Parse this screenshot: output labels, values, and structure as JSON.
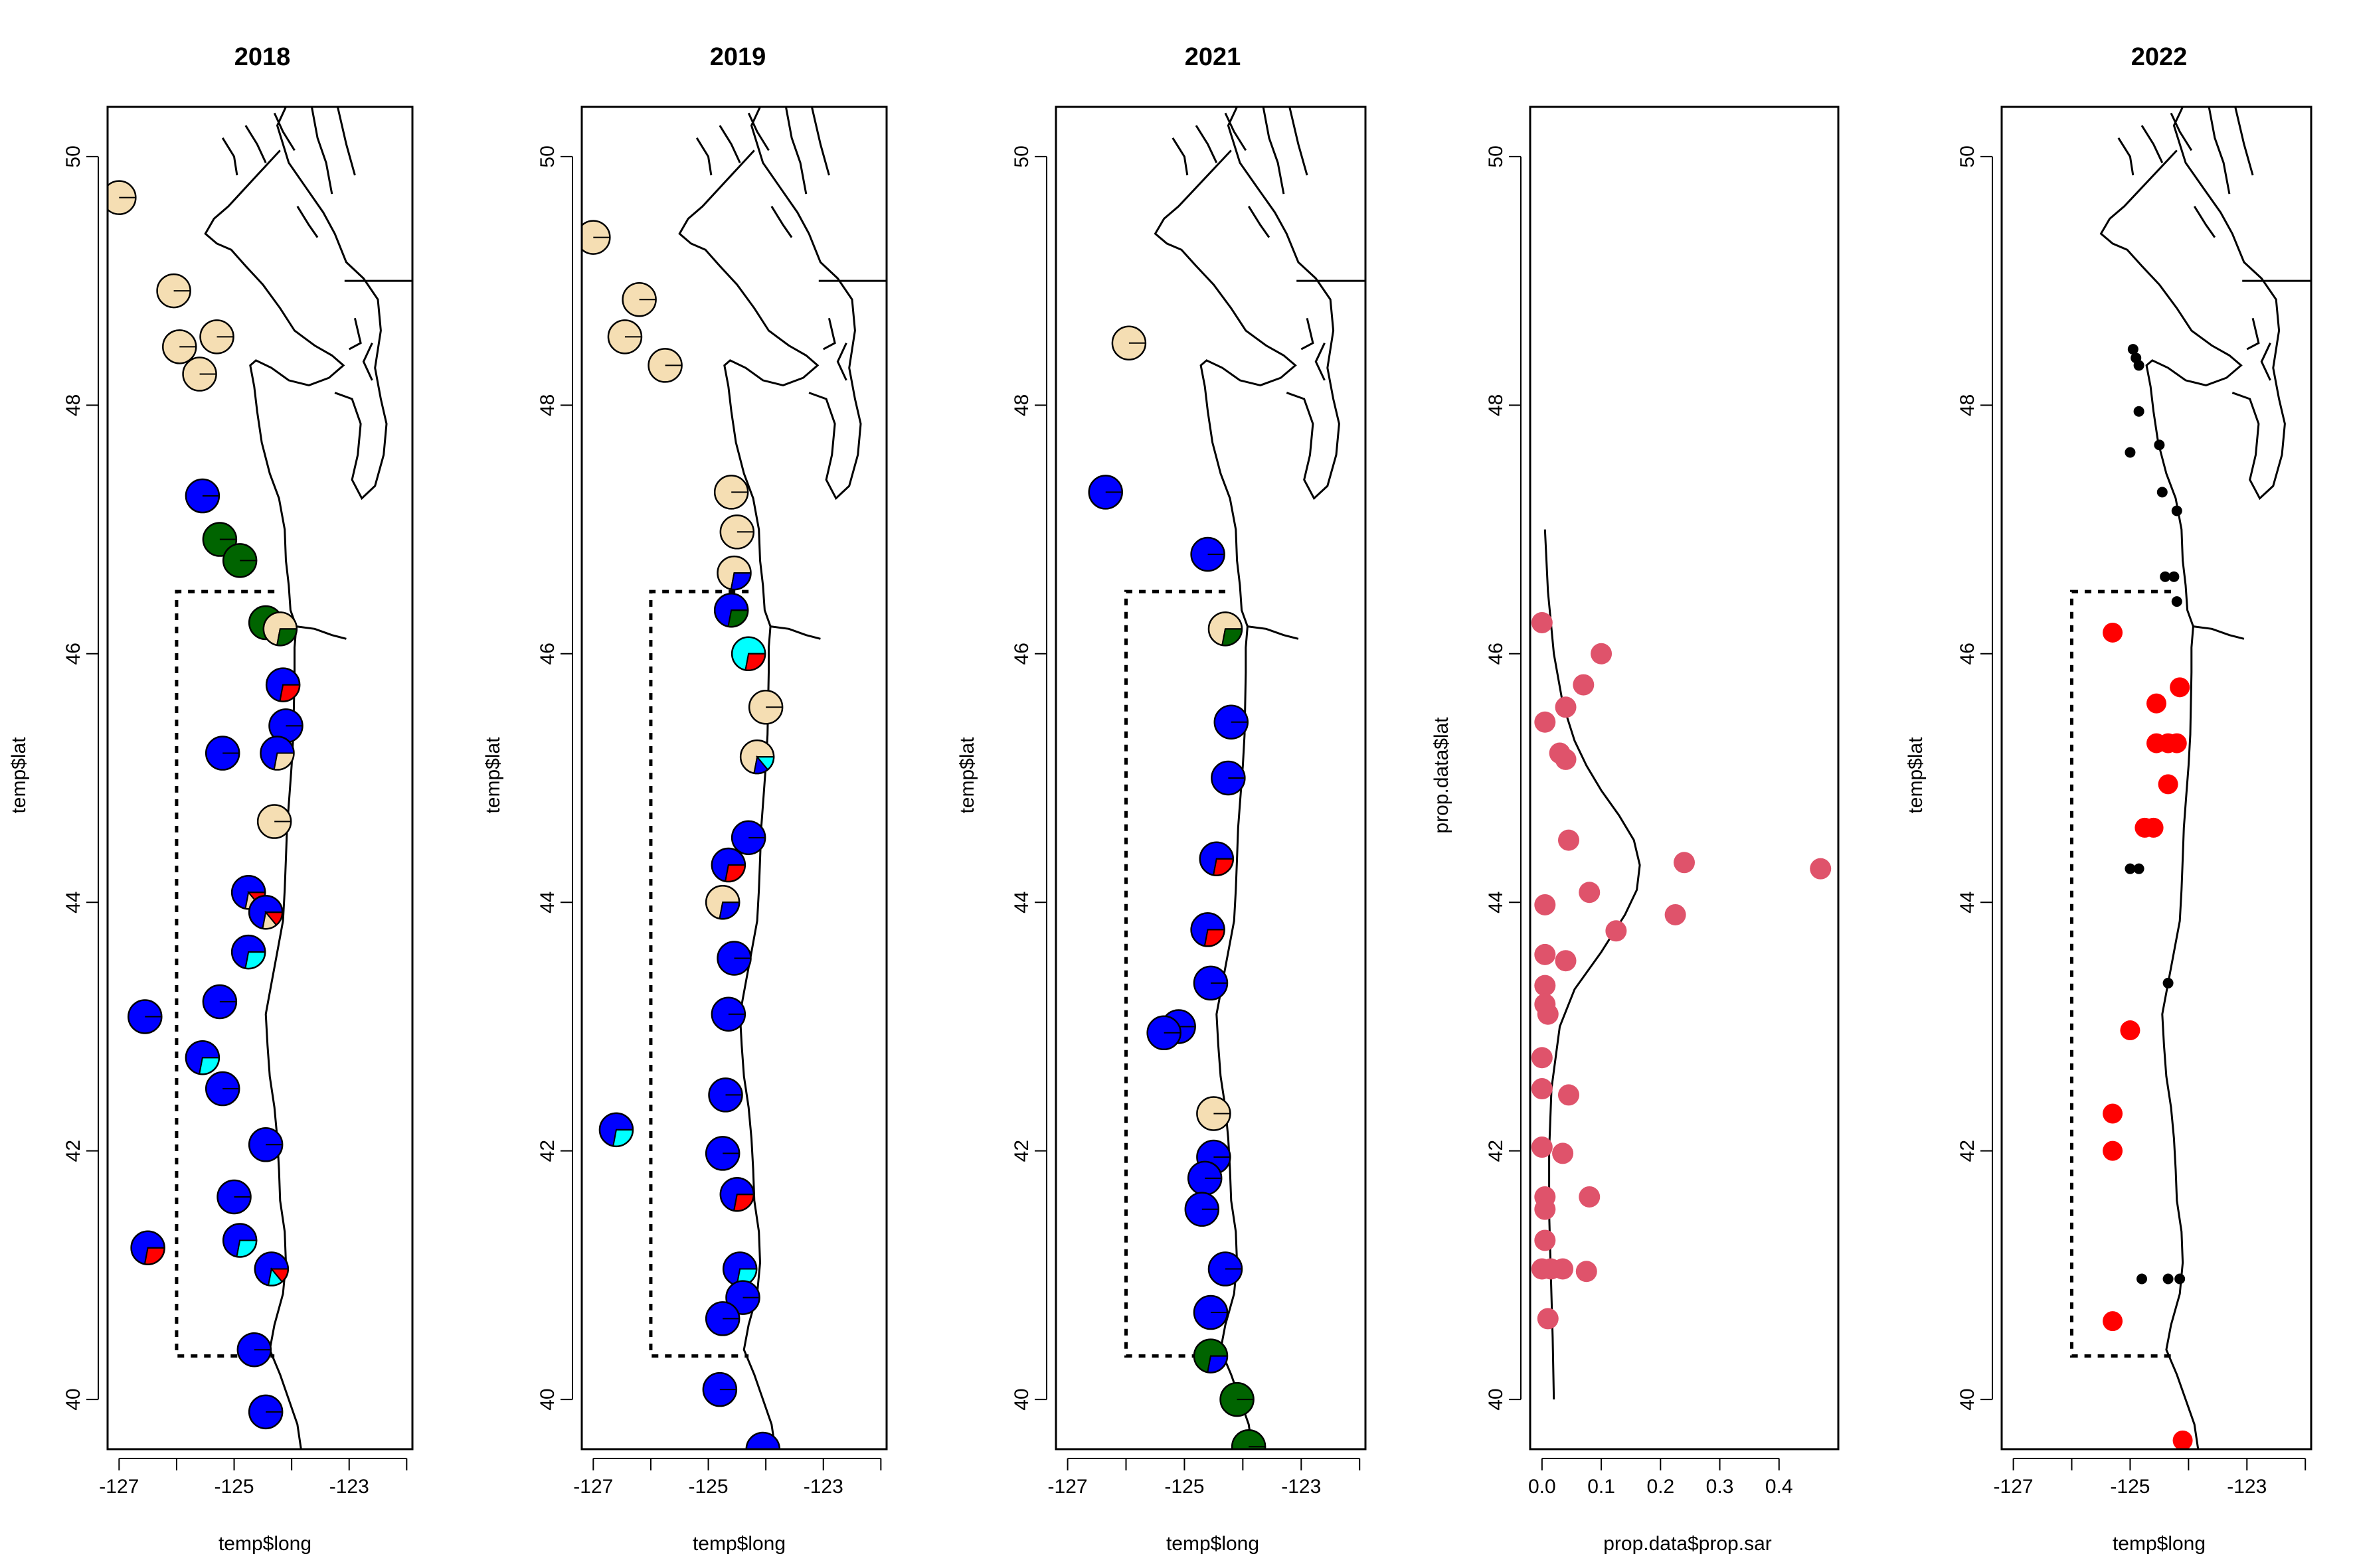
{
  "chart_data": [
    {
      "type": "map-pie",
      "title": "2018",
      "xlabel": "temp$long",
      "ylabel": "temp$lat",
      "xlim": [
        -127.2,
        -121.9
      ],
      "ylim": [
        39.6,
        50.4
      ],
      "xticks": [
        "-127",
        "-125",
        "-123"
      ],
      "yticks": [
        "40",
        "42",
        "44",
        "46",
        "48",
        "50"
      ],
      "box": {
        "lon": [
          -126.0,
          -124.3
        ],
        "lat": [
          40.35,
          46.5
        ]
      },
      "markers": [
        {
          "lon": -127.0,
          "lat": 49.67,
          "colors": [
            "tan"
          ]
        },
        {
          "lon": -126.05,
          "lat": 48.92,
          "colors": [
            "tan"
          ]
        },
        {
          "lon": -125.95,
          "lat": 48.47,
          "colors": [
            "tan"
          ]
        },
        {
          "lon": -125.6,
          "lat": 48.25,
          "colors": [
            "tan"
          ]
        },
        {
          "lon": -125.3,
          "lat": 48.55,
          "colors": [
            "tan"
          ]
        },
        {
          "lon": -125.55,
          "lat": 47.27,
          "colors": [
            "blue"
          ]
        },
        {
          "lon": -125.25,
          "lat": 46.92,
          "colors": [
            "green"
          ]
        },
        {
          "lon": -124.9,
          "lat": 46.75,
          "colors": [
            "green"
          ]
        },
        {
          "lon": -124.45,
          "lat": 46.25,
          "colors": [
            "green"
          ]
        },
        {
          "lon": -124.2,
          "lat": 46.2,
          "colors": [
            "tan",
            "green"
          ]
        },
        {
          "lon": -124.15,
          "lat": 45.75,
          "colors": [
            "blue",
            "red"
          ]
        },
        {
          "lon": -124.1,
          "lat": 45.42,
          "colors": [
            "blue"
          ]
        },
        {
          "lon": -125.2,
          "lat": 45.2,
          "colors": [
            "blue"
          ]
        },
        {
          "lon": -124.25,
          "lat": 45.2,
          "colors": [
            "blue",
            "tan"
          ]
        },
        {
          "lon": -124.3,
          "lat": 44.65,
          "colors": [
            "tan"
          ]
        },
        {
          "lon": -124.75,
          "lat": 44.08,
          "colors": [
            "blue",
            "tan",
            "red"
          ]
        },
        {
          "lon": -124.45,
          "lat": 43.92,
          "colors": [
            "blue",
            "tan",
            "red"
          ]
        },
        {
          "lon": -124.75,
          "lat": 43.6,
          "colors": [
            "blue",
            "cyan"
          ]
        },
        {
          "lon": -125.25,
          "lat": 43.2,
          "colors": [
            "blue"
          ]
        },
        {
          "lon": -126.55,
          "lat": 43.08,
          "colors": [
            "blue"
          ]
        },
        {
          "lon": -125.55,
          "lat": 42.75,
          "colors": [
            "blue",
            "cyan"
          ]
        },
        {
          "lon": -125.2,
          "lat": 42.5,
          "colors": [
            "blue"
          ]
        },
        {
          "lon": -124.45,
          "lat": 42.05,
          "colors": [
            "blue"
          ]
        },
        {
          "lon": -125.0,
          "lat": 41.63,
          "colors": [
            "blue"
          ]
        },
        {
          "lon": -124.9,
          "lat": 41.28,
          "colors": [
            "blue",
            "cyan"
          ]
        },
        {
          "lon": -126.5,
          "lat": 41.22,
          "colors": [
            "blue",
            "red"
          ]
        },
        {
          "lon": -124.35,
          "lat": 41.05,
          "colors": [
            "blue",
            "cyan",
            "red"
          ]
        },
        {
          "lon": -124.65,
          "lat": 40.4,
          "colors": [
            "blue"
          ]
        },
        {
          "lon": -124.45,
          "lat": 39.9,
          "colors": [
            "blue"
          ]
        }
      ]
    },
    {
      "type": "map-pie",
      "title": "2019",
      "xlabel": "temp$long",
      "ylabel": "temp$lat",
      "xlim": [
        -127.2,
        -121.9
      ],
      "ylim": [
        39.6,
        50.4
      ],
      "xticks": [
        "-127",
        "-125",
        "-123"
      ],
      "yticks": [
        "40",
        "42",
        "44",
        "46",
        "48",
        "50"
      ],
      "box": {
        "lon": [
          -126.0,
          -124.3
        ],
        "lat": [
          40.35,
          46.5
        ]
      },
      "markers": [
        {
          "lon": -127.0,
          "lat": 49.35,
          "colors": [
            "tan"
          ]
        },
        {
          "lon": -126.2,
          "lat": 48.85,
          "colors": [
            "tan"
          ]
        },
        {
          "lon": -126.45,
          "lat": 48.55,
          "colors": [
            "tan"
          ]
        },
        {
          "lon": -125.75,
          "lat": 48.32,
          "colors": [
            "tan"
          ]
        },
        {
          "lon": -124.6,
          "lat": 47.3,
          "colors": [
            "tan"
          ]
        },
        {
          "lon": -124.5,
          "lat": 46.98,
          "colors": [
            "tan"
          ]
        },
        {
          "lon": -124.55,
          "lat": 46.65,
          "colors": [
            "tan",
            "blue"
          ]
        },
        {
          "lon": -124.6,
          "lat": 46.35,
          "colors": [
            "blue",
            "green"
          ]
        },
        {
          "lon": -124.3,
          "lat": 46.0,
          "colors": [
            "cyan",
            "red"
          ]
        },
        {
          "lon": -124.0,
          "lat": 45.57,
          "colors": [
            "tan"
          ]
        },
        {
          "lon": -124.15,
          "lat": 45.17,
          "colors": [
            "tan",
            "blue",
            "cyan"
          ]
        },
        {
          "lon": -124.3,
          "lat": 44.52,
          "colors": [
            "blue"
          ]
        },
        {
          "lon": -124.65,
          "lat": 44.3,
          "colors": [
            "blue",
            "red"
          ]
        },
        {
          "lon": -124.75,
          "lat": 44.0,
          "colors": [
            "tan",
            "blue"
          ]
        },
        {
          "lon": -124.55,
          "lat": 43.55,
          "colors": [
            "blue"
          ]
        },
        {
          "lon": -124.65,
          "lat": 43.1,
          "colors": [
            "blue"
          ]
        },
        {
          "lon": -124.7,
          "lat": 42.45,
          "colors": [
            "blue"
          ]
        },
        {
          "lon": -126.6,
          "lat": 42.17,
          "colors": [
            "blue",
            "cyan"
          ]
        },
        {
          "lon": -124.75,
          "lat": 41.98,
          "colors": [
            "blue"
          ]
        },
        {
          "lon": -124.5,
          "lat": 41.65,
          "colors": [
            "blue",
            "red"
          ]
        },
        {
          "lon": -124.45,
          "lat": 41.05,
          "colors": [
            "blue",
            "cyan"
          ]
        },
        {
          "lon": -124.4,
          "lat": 40.82,
          "colors": [
            "blue"
          ]
        },
        {
          "lon": -124.75,
          "lat": 40.65,
          "colors": [
            "blue"
          ]
        },
        {
          "lon": -124.8,
          "lat": 40.08,
          "colors": [
            "blue"
          ]
        },
        {
          "lon": -124.05,
          "lat": 39.6,
          "colors": [
            "blue"
          ]
        }
      ]
    },
    {
      "type": "map-pie",
      "title": "2021",
      "xlabel": "temp$long",
      "ylabel": "temp$lat",
      "xlim": [
        -127.2,
        -121.9
      ],
      "ylim": [
        39.6,
        50.4
      ],
      "xticks": [
        "-127",
        "-125",
        "-123"
      ],
      "yticks": [
        "40",
        "42",
        "44",
        "46",
        "48",
        "50"
      ],
      "box": {
        "lon": [
          -126.0,
          -124.3
        ],
        "lat": [
          40.35,
          46.5
        ]
      },
      "markers": [
        {
          "lon": -125.95,
          "lat": 48.5,
          "colors": [
            "tan"
          ]
        },
        {
          "lon": -126.35,
          "lat": 47.3,
          "colors": [
            "blue"
          ]
        },
        {
          "lon": -124.6,
          "lat": 46.8,
          "colors": [
            "blue"
          ]
        },
        {
          "lon": -124.3,
          "lat": 46.2,
          "colors": [
            "tan",
            "green"
          ]
        },
        {
          "lon": -124.2,
          "lat": 45.45,
          "colors": [
            "blue"
          ]
        },
        {
          "lon": -124.25,
          "lat": 45.0,
          "colors": [
            "blue"
          ]
        },
        {
          "lon": -124.45,
          "lat": 44.35,
          "colors": [
            "blue",
            "red"
          ]
        },
        {
          "lon": -124.6,
          "lat": 43.78,
          "colors": [
            "blue",
            "red"
          ]
        },
        {
          "lon": -124.55,
          "lat": 43.35,
          "colors": [
            "blue"
          ]
        },
        {
          "lon": -125.1,
          "lat": 43.0,
          "colors": [
            "blue"
          ]
        },
        {
          "lon": -125.35,
          "lat": 42.95,
          "colors": [
            "blue"
          ]
        },
        {
          "lon": -124.5,
          "lat": 42.3,
          "colors": [
            "tan"
          ]
        },
        {
          "lon": -124.5,
          "lat": 41.95,
          "colors": [
            "blue"
          ]
        },
        {
          "lon": -124.65,
          "lat": 41.78,
          "colors": [
            "blue"
          ]
        },
        {
          "lon": -124.7,
          "lat": 41.53,
          "colors": [
            "blue"
          ]
        },
        {
          "lon": -124.3,
          "lat": 41.05,
          "colors": [
            "blue"
          ]
        },
        {
          "lon": -124.55,
          "lat": 40.7,
          "colors": [
            "blue"
          ]
        },
        {
          "lon": -124.55,
          "lat": 40.35,
          "colors": [
            "green",
            "blue"
          ]
        },
        {
          "lon": -124.1,
          "lat": 40.0,
          "colors": [
            "green"
          ]
        },
        {
          "lon": -123.9,
          "lat": 39.62,
          "colors": [
            "green"
          ]
        }
      ]
    },
    {
      "type": "scatter",
      "title": "",
      "xlabel": "prop.data$prop.sar",
      "ylabel": "prop.data$lat",
      "xlim": [
        -0.02,
        0.5
      ],
      "ylim": [
        39.6,
        50.4
      ],
      "xticks": [
        0.0,
        0.1,
        0.2,
        0.3,
        0.4
      ],
      "yticks": [
        40,
        42,
        44,
        46,
        48,
        50
      ],
      "points": [
        [
          0.0,
          46.25
        ],
        [
          0.1,
          46.0
        ],
        [
          0.07,
          45.75
        ],
        [
          0.04,
          45.57
        ],
        [
          0.005,
          45.45
        ],
        [
          0.03,
          45.2
        ],
        [
          0.04,
          45.15
        ],
        [
          0.045,
          44.5
        ],
        [
          0.24,
          44.32
        ],
        [
          0.47,
          44.27
        ],
        [
          0.08,
          44.08
        ],
        [
          0.005,
          43.98
        ],
        [
          0.225,
          43.9
        ],
        [
          0.125,
          43.77
        ],
        [
          0.005,
          43.58
        ],
        [
          0.04,
          43.53
        ],
        [
          0.005,
          43.33
        ],
        [
          0.005,
          43.18
        ],
        [
          0.01,
          43.1
        ],
        [
          0.0,
          42.75
        ],
        [
          0.0,
          42.5
        ],
        [
          0.045,
          42.45
        ],
        [
          0.0,
          42.03
        ],
        [
          0.035,
          41.98
        ],
        [
          0.005,
          41.63
        ],
        [
          0.08,
          41.63
        ],
        [
          0.005,
          41.53
        ],
        [
          0.005,
          41.28
        ],
        [
          0.0,
          41.05
        ],
        [
          0.035,
          41.05
        ],
        [
          0.015,
          41.05
        ],
        [
          0.075,
          41.03
        ],
        [
          0.01,
          40.65
        ]
      ],
      "curve_y": [
        40.0,
        40.5,
        41.0,
        41.5,
        42.0,
        42.5,
        43.0,
        43.3,
        43.6,
        43.9,
        44.1,
        44.3,
        44.5,
        44.7,
        44.9,
        45.1,
        45.3,
        45.6,
        46.0,
        46.5,
        47.0
      ],
      "curve_x": [
        0.02,
        0.018,
        0.015,
        0.012,
        0.012,
        0.016,
        0.03,
        0.055,
        0.1,
        0.14,
        0.16,
        0.165,
        0.155,
        0.13,
        0.1,
        0.075,
        0.055,
        0.035,
        0.02,
        0.01,
        0.005
      ]
    },
    {
      "type": "map-scatter",
      "title": "2022",
      "xlabel": "temp$long",
      "ylabel": "temp$lat",
      "xlim": [
        -127.2,
        -121.9
      ],
      "ylim": [
        39.6,
        50.4
      ],
      "xticks": [
        "-127",
        "-125",
        "-123"
      ],
      "yticks": [
        "40",
        "42",
        "44",
        "46",
        "48",
        "50"
      ],
      "box": {
        "lon": [
          -126.0,
          -124.3
        ],
        "lat": [
          40.35,
          46.5
        ]
      },
      "black_points": [
        [
          -124.95,
          48.45
        ],
        [
          -124.9,
          48.38
        ],
        [
          -124.85,
          48.32
        ],
        [
          -124.85,
          47.95
        ],
        [
          -124.5,
          47.68
        ],
        [
          -125.0,
          47.62
        ],
        [
          -124.45,
          47.3
        ],
        [
          -124.2,
          47.15
        ],
        [
          -124.4,
          46.62
        ],
        [
          -124.25,
          46.62
        ],
        [
          -124.2,
          46.42
        ],
        [
          -125.0,
          44.27
        ],
        [
          -124.85,
          44.27
        ],
        [
          -124.35,
          43.35
        ],
        [
          -124.8,
          40.97
        ],
        [
          -124.35,
          40.97
        ],
        [
          -124.15,
          40.97
        ]
      ],
      "red_points": [
        [
          -125.3,
          46.17
        ],
        [
          -124.15,
          45.73
        ],
        [
          -124.55,
          45.6
        ],
        [
          -124.55,
          45.28
        ],
        [
          -124.35,
          45.28
        ],
        [
          -124.2,
          45.28
        ],
        [
          -124.35,
          44.95
        ],
        [
          -124.75,
          44.6
        ],
        [
          -124.6,
          44.6
        ],
        [
          -125.0,
          42.97
        ],
        [
          -125.3,
          42.3
        ],
        [
          -125.3,
          42.0
        ],
        [
          -125.3,
          40.63
        ],
        [
          -124.1,
          39.67
        ]
      ]
    }
  ],
  "colors": {
    "tan": "#f5deb3",
    "blue": "#0000ff",
    "green": "#006400",
    "red": "#ff0000",
    "cyan": "#00ffff",
    "scatter_pink": "#df536b",
    "black": "#000000"
  }
}
